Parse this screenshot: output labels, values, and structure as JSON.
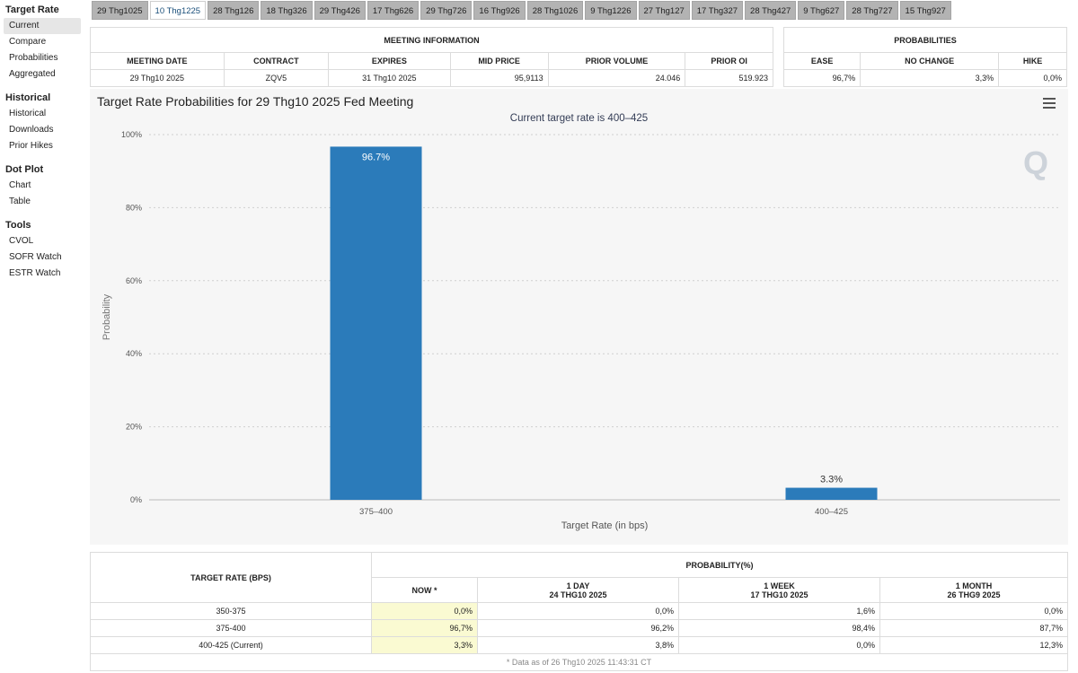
{
  "sidebar": {
    "sections": [
      {
        "title": "Target Rate",
        "items": [
          "Current",
          "Compare",
          "Probabilities",
          "Aggregated"
        ]
      },
      {
        "title": "Historical",
        "items": [
          "Historical",
          "Downloads",
          "Prior Hikes"
        ]
      },
      {
        "title": "Dot Plot",
        "items": [
          "Chart",
          "Table"
        ]
      },
      {
        "title": "Tools",
        "items": [
          "CVOL",
          "SOFR Watch",
          "ESTR Watch"
        ]
      }
    ],
    "active_item": "Current"
  },
  "tabs": [
    "29 Thg1025",
    "10 Thg1225",
    "28 Thg126",
    "18 Thg326",
    "29 Thg426",
    "17 Thg626",
    "29 Thg726",
    "16 Thg926",
    "28 Thg1026",
    "9 Thg1226",
    "27 Thg127",
    "17 Thg327",
    "28 Thg427",
    "9 Thg627",
    "28 Thg727",
    "15 Thg927"
  ],
  "active_tab": 1,
  "meeting_info": {
    "title": "MEETING INFORMATION",
    "headers": [
      "MEETING DATE",
      "CONTRACT",
      "EXPIRES",
      "MID PRICE",
      "PRIOR VOLUME",
      "PRIOR OI"
    ],
    "values": [
      "29 Thg10 2025",
      "ZQV5",
      "31 Thg10 2025",
      "95,9113",
      "24.046",
      "519.923"
    ]
  },
  "probabilities": {
    "title": "PROBABILITIES",
    "headers": [
      "EASE",
      "NO CHANGE",
      "HIKE"
    ],
    "values": [
      "96,7%",
      "3,3%",
      "0,0%"
    ]
  },
  "chart": {
    "title": "Target Rate Probabilities for 29 Thg10 2025 Fed Meeting",
    "subtitle": "Current target rate is 400–425",
    "bar_color": "#2b7bba"
  },
  "chart_data": {
    "type": "bar",
    "categories": [
      "375–400",
      "400–425"
    ],
    "values": [
      96.7,
      3.3
    ],
    "data_labels": [
      "96.7%",
      "3.3%"
    ],
    "xlabel": "Target Rate (in bps)",
    "ylabel": "Probability",
    "ylim": [
      0,
      100
    ],
    "yticks": [
      "0%",
      "20%",
      "40%",
      "60%",
      "80%",
      "100%"
    ],
    "grid": true
  },
  "rate_table": {
    "col_target": "TARGET RATE (BPS)",
    "col_prob": "PROBABILITY(%)",
    "sub_headers": [
      {
        "line1": "NOW *",
        "line2": ""
      },
      {
        "line1": "1 DAY",
        "line2": "24 THG10 2025"
      },
      {
        "line1": "1 WEEK",
        "line2": "17 THG10 2025"
      },
      {
        "line1": "1 MONTH",
        "line2": "26 THG9 2025"
      }
    ],
    "rows": [
      {
        "rate": "350-375",
        "values": [
          "0,0%",
          "0,0%",
          "1,6%",
          "0,0%"
        ]
      },
      {
        "rate": "375-400",
        "values": [
          "96,7%",
          "96,2%",
          "98,4%",
          "87,7%"
        ]
      },
      {
        "rate": "400-425 (Current)",
        "values": [
          "3,3%",
          "3,8%",
          "0,0%",
          "12,3%"
        ]
      }
    ],
    "footnote": "* Data as of 26 Thg10 2025 11:43:31 CT"
  }
}
